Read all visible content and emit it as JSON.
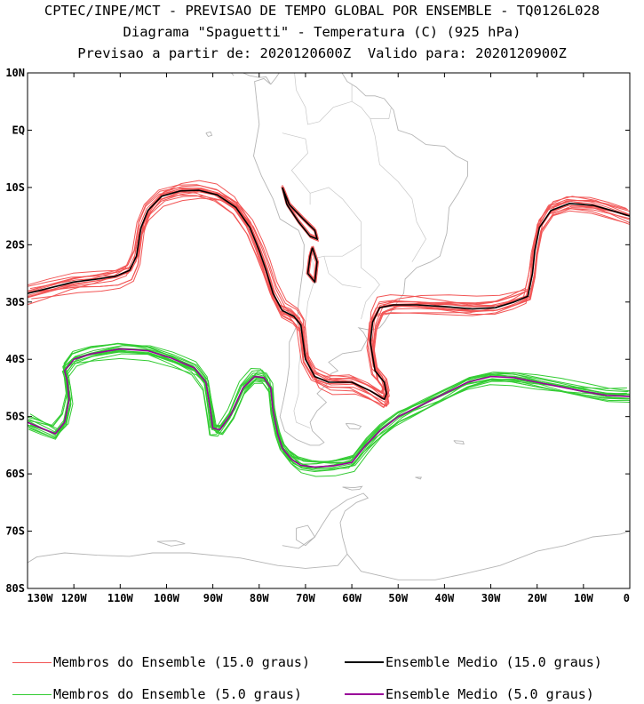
{
  "header": {
    "line1": "CPTEC/INPE/MCT - PREVISAO DE TEMPO GLOBAL POR ENSEMBLE - TQ0126L028",
    "line2": "Diagrama \"Spaguetti\" - Temperatura (C) (925 hPa)",
    "line3": "Previsao a partir de: 2020120600Z  Valido para: 2020120900Z"
  },
  "map": {
    "lon_range": [
      -130,
      0
    ],
    "lat_range": [
      -80,
      10
    ],
    "lat_ticks": [
      {
        "value": 10,
        "label": "10N"
      },
      {
        "value": 0,
        "label": "EQ"
      },
      {
        "value": -10,
        "label": "10S"
      },
      {
        "value": -20,
        "label": "20S"
      },
      {
        "value": -30,
        "label": "30S"
      },
      {
        "value": -40,
        "label": "40S"
      },
      {
        "value": -50,
        "label": "50S"
      },
      {
        "value": -60,
        "label": "60S"
      },
      {
        "value": -70,
        "label": "70S"
      },
      {
        "value": -80,
        "label": "80S"
      }
    ],
    "lon_ticks": [
      {
        "value": -130,
        "label": "130W"
      },
      {
        "value": -120,
        "label": "120W"
      },
      {
        "value": -110,
        "label": "110W"
      },
      {
        "value": -100,
        "label": "100W"
      },
      {
        "value": -90,
        "label": "90W"
      },
      {
        "value": -80,
        "label": "80W"
      },
      {
        "value": -70,
        "label": "70W"
      },
      {
        "value": -60,
        "label": "60W"
      },
      {
        "value": -50,
        "label": "50W"
      },
      {
        "value": -40,
        "label": "40W"
      },
      {
        "value": -30,
        "label": "30W"
      },
      {
        "value": -20,
        "label": "20W"
      },
      {
        "value": -10,
        "label": "10W"
      },
      {
        "value": 0,
        "label": "0"
      }
    ],
    "colors": {
      "members_15": "#f25555",
      "mean_15": "#000000",
      "members_5": "#33cc33",
      "mean_5": "#990099",
      "coast": "#b5b5b5"
    }
  },
  "legend": {
    "members_15": "Membros do Ensemble (15.0 graus)",
    "mean_15": "Ensemble Medio (15.0 graus)",
    "members_5": "Membros do Ensemble (5.0 graus)",
    "mean_5": "Ensemble Medio (5.0 graus)"
  },
  "chart_data": {
    "type": "line",
    "x_label": "",
    "y_label": "",
    "xlim": [
      -130,
      0
    ],
    "ylim": [
      -80,
      10
    ],
    "series": [
      {
        "name": "Ensemble Medio (15.0 graus)",
        "x": [
          -130,
          -125,
          -120,
          -115,
          -111,
          -108,
          -106.5,
          -105.5,
          -104,
          -101,
          -97,
          -93,
          -89,
          -85,
          -82,
          -80,
          -78.5,
          -77,
          -75,
          -72.5,
          -71,
          -70.5,
          -70,
          -68,
          -65,
          -60,
          -56,
          -53,
          -52.5,
          -53,
          -55,
          -56,
          -55.5,
          -54,
          -51,
          -46,
          -40,
          -34,
          -29,
          -25,
          -22,
          -21,
          -20.5,
          -19.5,
          -17,
          -13,
          -8,
          -4,
          0
        ],
        "y": [
          -28.5,
          -27.5,
          -26.5,
          -26,
          -25.5,
          -24.5,
          -22,
          -17,
          -14,
          -11.5,
          -10.6,
          -10.5,
          -11.3,
          -13.5,
          -17,
          -21,
          -24.5,
          -28.5,
          -31.5,
          -32.5,
          -34,
          -37,
          -40,
          -43,
          -44,
          -44,
          -45.5,
          -47,
          -46,
          -44,
          -42,
          -37,
          -33.5,
          -31,
          -30.5,
          -30.5,
          -30.8,
          -31.2,
          -31,
          -30,
          -29,
          -25,
          -21,
          -17,
          -14,
          -12.8,
          -13.1,
          -14,
          -15
        ]
      },
      {
        "name": "Ensemble Medio (5.0 graus)",
        "x": [
          -130,
          -127,
          -124,
          -122,
          -121,
          -121.5,
          -122,
          -120,
          -116,
          -110,
          -104,
          -99,
          -94,
          -91.5,
          -90.5,
          -90,
          -88.5,
          -86,
          -83.5,
          -81,
          -79,
          -77.5,
          -77,
          -76,
          -75,
          -73,
          -71,
          -68,
          -64,
          -60,
          -57,
          -54,
          -50,
          -45,
          -40,
          -35,
          -30,
          -25,
          -20,
          -15,
          -10,
          -5,
          0
        ],
        "y": [
          -51,
          -52,
          -53,
          -51,
          -47,
          -43.5,
          -42,
          -40,
          -39,
          -38.2,
          -38.5,
          -39.8,
          -41.5,
          -44,
          -49,
          -52,
          -52.3,
          -49.5,
          -45,
          -43,
          -43.2,
          -45,
          -49,
          -53,
          -55.5,
          -57.5,
          -58.5,
          -58.8,
          -58.6,
          -58,
          -55,
          -52.5,
          -50,
          -48,
          -46,
          -44,
          -43,
          -43.2,
          -44,
          -44.8,
          -45.6,
          -46.3,
          -46.5
        ]
      }
    ]
  }
}
